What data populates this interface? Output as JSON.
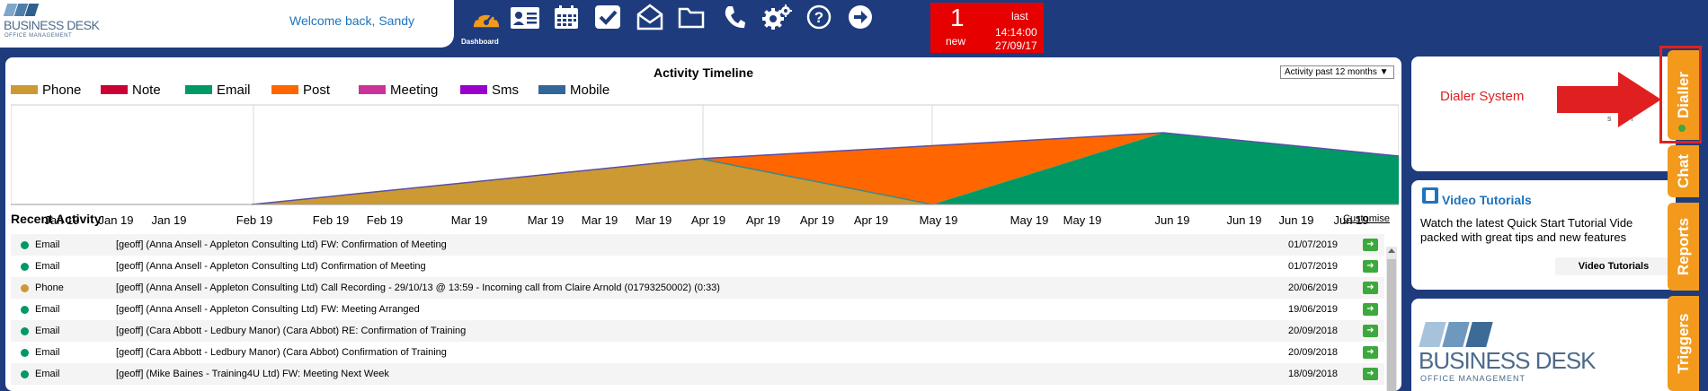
{
  "app": {
    "logo_text": "BUSINESS DESK",
    "logo_sub": "OFFICE MANAGEMENT",
    "welcome": "Welcome back, Sandy"
  },
  "toolbar": {
    "dashboard_label": "Dashboard",
    "icons": [
      "dashboard-icon",
      "contacts-icon",
      "calendar-icon",
      "tasks-icon",
      "mail-icon",
      "folder-icon",
      "phone-icon",
      "settings-icon",
      "help-icon",
      "logout-icon"
    ]
  },
  "notification": {
    "count": "1",
    "new_label": "new",
    "last_label": "last",
    "time": "14:14:00",
    "date": "27/09/17"
  },
  "activity": {
    "title": "Activity Timeline",
    "range_select": "Activity past 12 months ▼",
    "recent_title": "Recent Activity",
    "customise": "Customise",
    "rows": [
      {
        "type": "Email",
        "desc": "[geoff] (Anna Ansell - Appleton Consulting Ltd) FW: Confirmation of Meeting",
        "date": "01/07/2019",
        "color": "#009966"
      },
      {
        "type": "Email",
        "desc": "[geoff] (Anna Ansell - Appleton Consulting Ltd) Confirmation of Meeting",
        "date": "01/07/2019",
        "color": "#009966"
      },
      {
        "type": "Phone",
        "desc": "[geoff] (Anna Ansell - Appleton Consulting Ltd) Call Recording - 29/10/13 @ 13:59 - Incoming call from Claire Arnold (01793250002) (0:33)",
        "date": "20/06/2019",
        "color": "#cc9933"
      },
      {
        "type": "Email",
        "desc": "[geoff] (Anna Ansell - Appleton Consulting Ltd) FW: Meeting Arranged",
        "date": "19/06/2019",
        "color": "#009966"
      },
      {
        "type": "Email",
        "desc": "[geoff] (Cara Abbott - Ledbury Manor) (Cara Abbot) RE: Confirmation of Training",
        "date": "20/09/2018",
        "color": "#009966"
      },
      {
        "type": "Email",
        "desc": "[geoff] (Cara Abbott - Ledbury Manor) (Cara Abbot) Confirmation of Training",
        "date": "20/09/2018",
        "color": "#009966"
      },
      {
        "type": "Email",
        "desc": "[geoff] (Mike Baines - Training4U Ltd) FW: Meeting Next Week",
        "date": "18/09/2018",
        "color": "#009966"
      }
    ]
  },
  "chart_data": {
    "type": "area",
    "title": "Activity Timeline",
    "legend_position": "top-left",
    "grid": true,
    "series": [
      {
        "name": "Phone",
        "color": "#cc9933"
      },
      {
        "name": "Note",
        "color": "#cc0033"
      },
      {
        "name": "Email",
        "color": "#009966"
      },
      {
        "name": "Post",
        "color": "#ff6600"
      },
      {
        "name": "Meeting",
        "color": "#cc3399"
      },
      {
        "name": "Sms",
        "color": "#9900cc"
      },
      {
        "name": "Mobile",
        "color": "#336699"
      }
    ],
    "x_ticks": [
      "Jan 19",
      "Jan 19",
      "Jan 19",
      "Feb 19",
      "Feb 19",
      "Feb 19",
      "Mar 19",
      "Mar 19",
      "Mar 19",
      "Mar 19",
      "Apr 19",
      "Apr 19",
      "Apr 19",
      "Apr 19",
      "May 19",
      "May 19",
      "May 19",
      "Jun 19",
      "Jun 19",
      "Jun 19",
      "Jun 19"
    ]
  },
  "dialer_panel": {
    "label": "Dialer System",
    "partial_text": "s o r"
  },
  "video_panel": {
    "title": "Video Tutorials",
    "line1": "Watch the latest Quick Start Tutorial Vide",
    "line2": "packed with great tips and new features",
    "link": "Video Tutorials"
  },
  "side_tabs": {
    "dialler": "Dialler",
    "chat": "Chat",
    "reports": "Reports",
    "triggers": "Triggers"
  }
}
